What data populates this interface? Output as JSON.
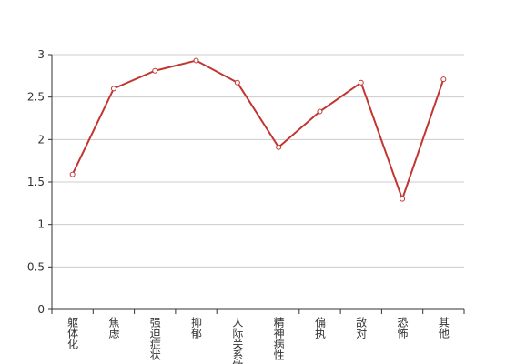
{
  "chart_data": {
    "type": "line",
    "categories": [
      "躯体化",
      "焦虑",
      "强迫症状",
      "抑郁",
      "人际关系敏感",
      "精神病性",
      "偏执",
      "敌对",
      "恐怖",
      "其他"
    ],
    "series": [
      {
        "color": "#c23531",
        "values": [
          1.59,
          2.6,
          2.81,
          2.93,
          2.67,
          1.91,
          2.33,
          2.67,
          1.3,
          2.71
        ]
      }
    ],
    "ylim": [
      0,
      3
    ],
    "yticks": [
      0,
      0.5,
      1,
      1.5,
      2,
      2.5,
      3
    ],
    "grid": true
  }
}
